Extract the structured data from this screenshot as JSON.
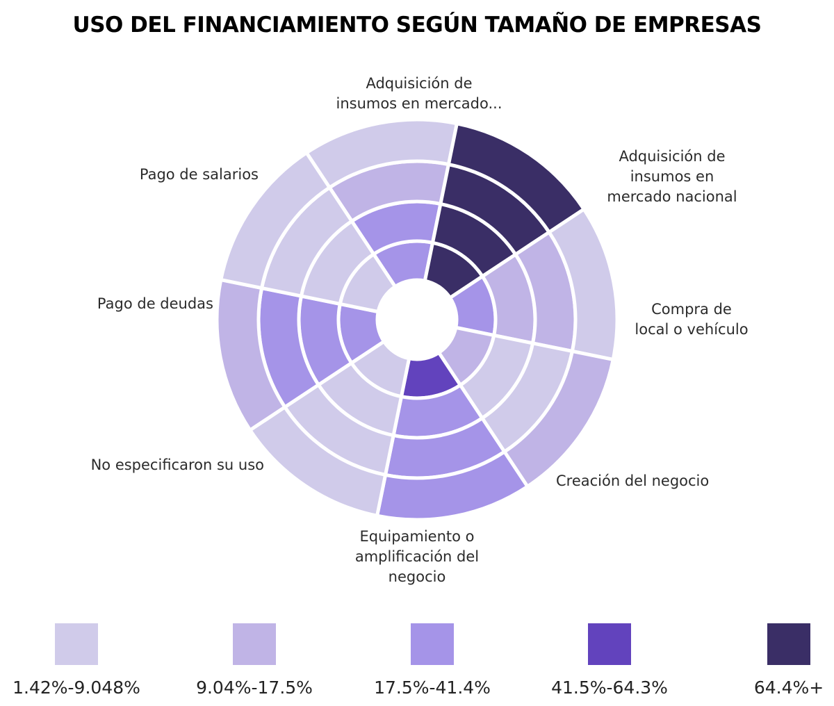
{
  "chart_data": {
    "type": "radial-heatmap",
    "title": "USO DEL FINANCIAMIENTO SEGÚN TAMAÑO DE EMPRESAS",
    "categories": [
      "Adquisición de insumos en mercado...",
      "Adquisición de insumos en mercado nacional",
      "Compra de local o vehículo",
      "Creación del negocio",
      "Equipamiento o amplificación del negocio",
      "No especificaron su uso",
      "Pago de deudas",
      "Pago de salarios"
    ],
    "category_label_lines": [
      [
        "Adquisición de",
        "insumos en mercado..."
      ],
      [
        "Adquisición de",
        "insumos en",
        "mercado nacional"
      ],
      [
        "Compra de",
        "local o vehículo"
      ],
      [
        "Creación del negocio"
      ],
      [
        "Equipamiento o",
        "amplificación del",
        "negocio"
      ],
      [
        "No especificaron su uso"
      ],
      [
        "Pago de deudas"
      ],
      [
        "Pago de salarios"
      ]
    ],
    "rings_inner_to_outer": 4,
    "bins": [
      1,
      2,
      3,
      4,
      5
    ],
    "cell_bins": [
      [
        3,
        3,
        2,
        1
      ],
      [
        5,
        5,
        5,
        5
      ],
      [
        3,
        2,
        2,
        1
      ],
      [
        2,
        1,
        1,
        2
      ],
      [
        4,
        3,
        3,
        3
      ],
      [
        1,
        1,
        1,
        1
      ],
      [
        3,
        3,
        3,
        2
      ],
      [
        1,
        1,
        1,
        1
      ]
    ],
    "legend": [
      {
        "label": "1.42%-9.048%",
        "color": "#d0cbea"
      },
      {
        "label": "9.04%-17.5%",
        "color": "#c0b4e6"
      },
      {
        "label": "17.5%-41.4%",
        "color": "#a594e8"
      },
      {
        "label": "41.5%-64.3%",
        "color": "#6243bd"
      },
      {
        "label": "64.4%+",
        "color": "#3a2e66"
      }
    ]
  }
}
